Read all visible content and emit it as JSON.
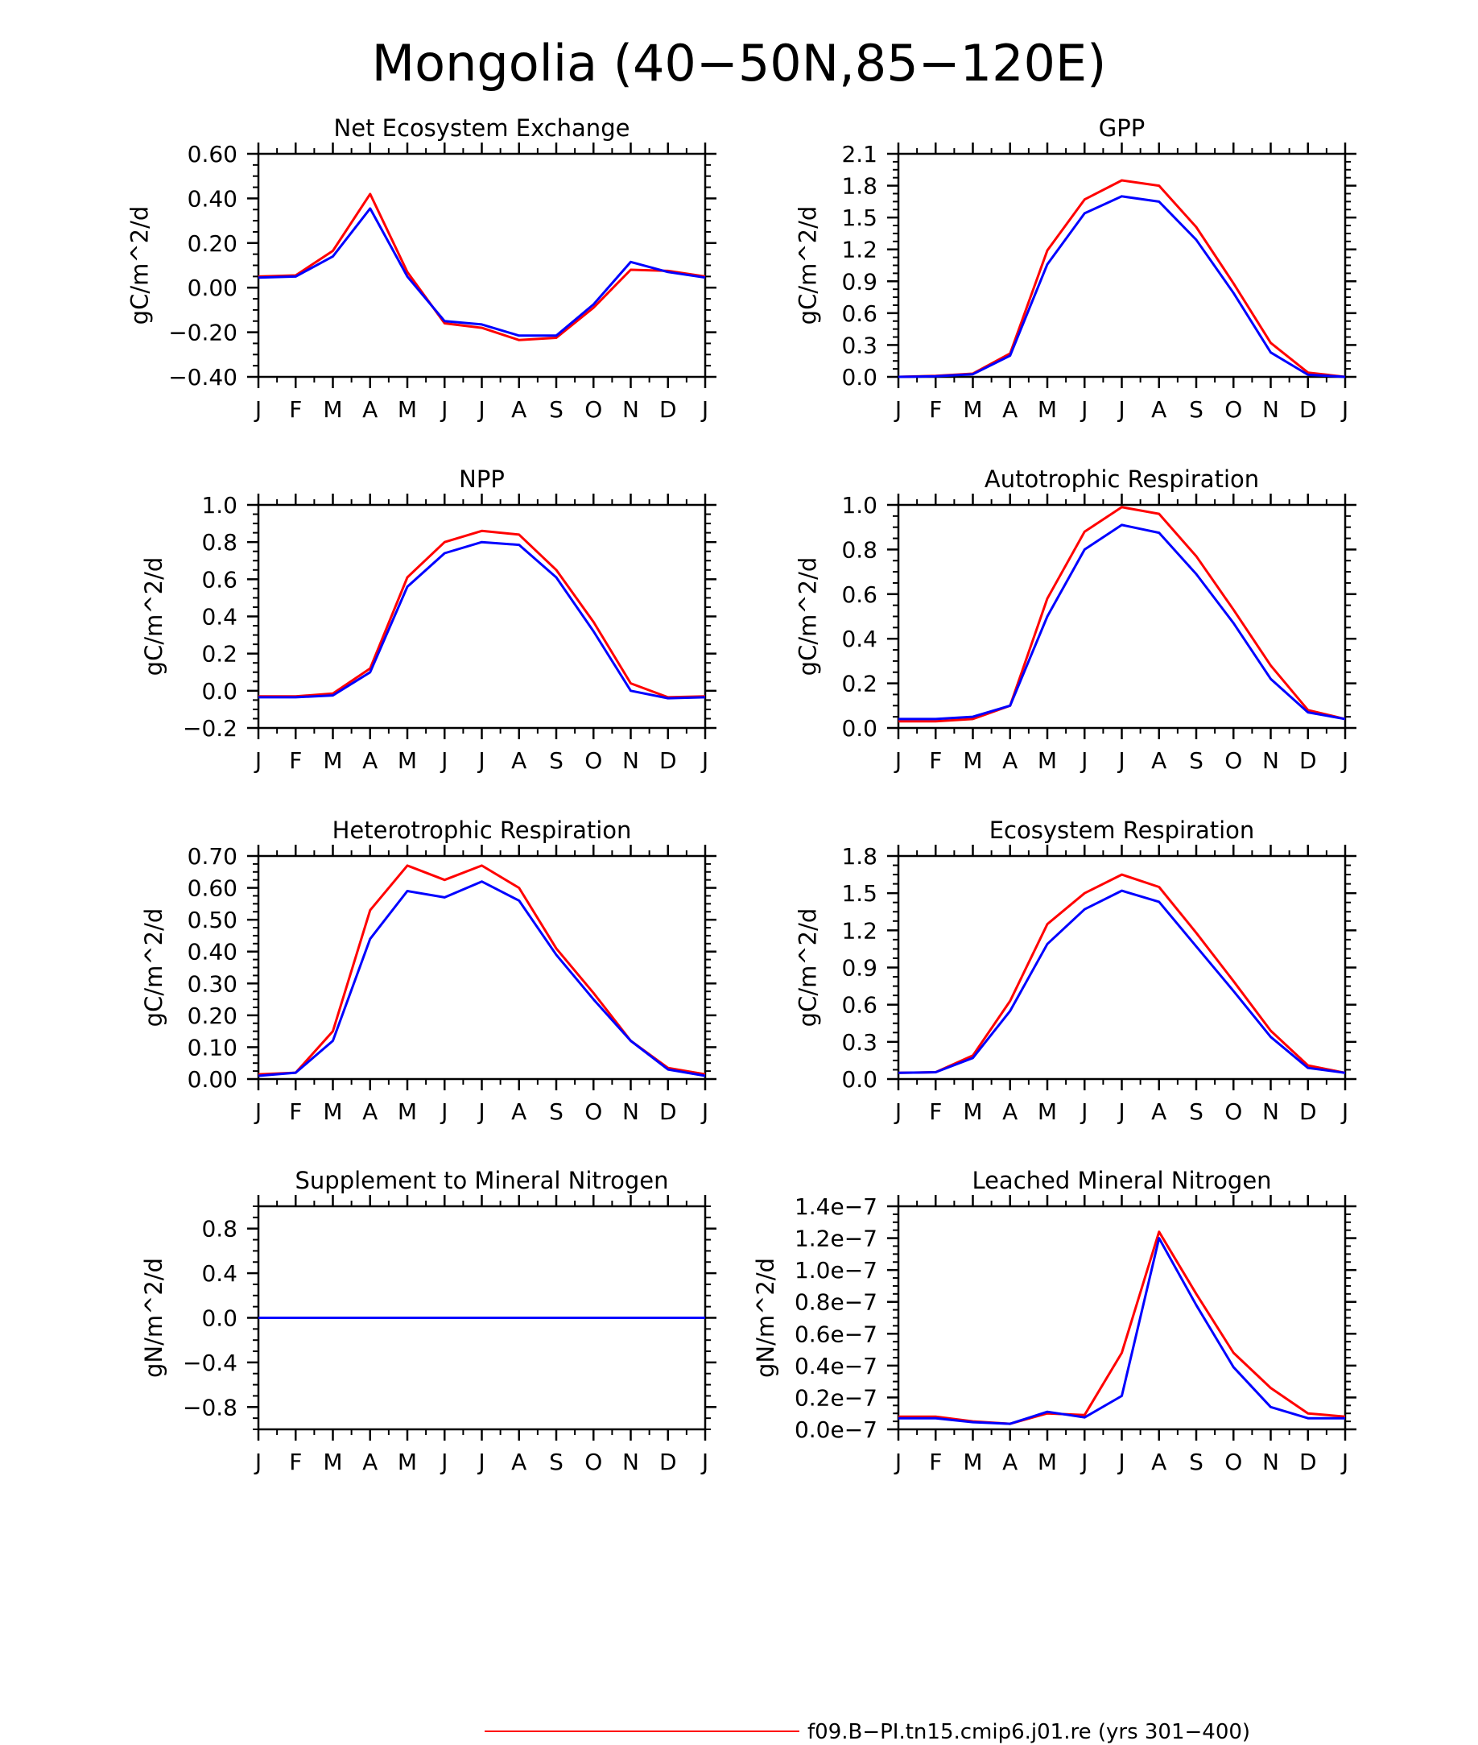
{
  "title": "Mongolia (40−50N,85−120E)",
  "colors": {
    "series_a": "#ff0000",
    "series_b": "#0000ff",
    "axis": "#000000"
  },
  "months": [
    "J",
    "F",
    "M",
    "A",
    "M",
    "J",
    "J",
    "A",
    "S",
    "O",
    "N",
    "D",
    "J"
  ],
  "legend": {
    "entries": [
      {
        "label": "f09.B−PI.tn15.cmip6.j01.re (yrs 301−400)",
        "color": "#ff0000"
      }
    ]
  },
  "chart_data": [
    {
      "type": "line",
      "title": "Net Ecosystem Exchange",
      "ylabel": "gC/m^2/d",
      "ylim": [
        -0.4,
        0.6
      ],
      "yticks": [
        "0.60",
        "0.40",
        "0.20",
        "0.00",
        "−0.20",
        "−0.40"
      ],
      "x": [
        "J",
        "F",
        "M",
        "A",
        "M",
        "J",
        "J",
        "A",
        "S",
        "O",
        "N",
        "D",
        "J"
      ],
      "series": [
        {
          "color": "#ff0000",
          "values": [
            0.05,
            0.055,
            0.165,
            0.42,
            0.07,
            -0.16,
            -0.18,
            -0.235,
            -0.225,
            -0.09,
            0.08,
            0.075,
            0.05
          ]
        },
        {
          "color": "#0000ff",
          "values": [
            0.045,
            0.05,
            0.14,
            0.355,
            0.05,
            -0.15,
            -0.165,
            -0.215,
            -0.215,
            -0.075,
            0.115,
            0.07,
            0.045
          ]
        }
      ]
    },
    {
      "type": "line",
      "title": "GPP",
      "ylabel": "gC/m^2/d",
      "ylim": [
        0.0,
        2.1
      ],
      "yticks": [
        "2.1",
        "1.8",
        "1.5",
        "1.2",
        "0.9",
        "0.6",
        "0.3",
        "0.0"
      ],
      "x": [
        "J",
        "F",
        "M",
        "A",
        "M",
        "J",
        "J",
        "A",
        "S",
        "O",
        "N",
        "D",
        "J"
      ],
      "series": [
        {
          "color": "#ff0000",
          "values": [
            0.0,
            0.01,
            0.03,
            0.22,
            1.19,
            1.67,
            1.85,
            1.8,
            1.41,
            0.88,
            0.32,
            0.04,
            0.0
          ]
        },
        {
          "color": "#0000ff",
          "values": [
            0.0,
            0.005,
            0.025,
            0.2,
            1.06,
            1.54,
            1.7,
            1.65,
            1.29,
            0.79,
            0.23,
            0.02,
            0.0
          ]
        }
      ]
    },
    {
      "type": "line",
      "title": "NPP",
      "ylabel": "gC/m^2/d",
      "ylim": [
        -0.2,
        1.0
      ],
      "yticks": [
        "1.0",
        "0.8",
        "0.6",
        "0.4",
        "0.2",
        "0.0",
        "−0.2"
      ],
      "x": [
        "J",
        "F",
        "M",
        "A",
        "M",
        "J",
        "J",
        "A",
        "S",
        "O",
        "N",
        "D",
        "J"
      ],
      "series": [
        {
          "color": "#ff0000",
          "values": [
            -0.03,
            -0.03,
            -0.015,
            0.12,
            0.61,
            0.8,
            0.86,
            0.84,
            0.65,
            0.37,
            0.04,
            -0.035,
            -0.03
          ]
        },
        {
          "color": "#0000ff",
          "values": [
            -0.035,
            -0.035,
            -0.025,
            0.1,
            0.56,
            0.74,
            0.8,
            0.785,
            0.61,
            0.32,
            0.0,
            -0.04,
            -0.035
          ]
        }
      ]
    },
    {
      "type": "line",
      "title": "Autotrophic Respiration",
      "ylabel": "gC/m^2/d",
      "ylim": [
        0.0,
        1.0
      ],
      "yticks": [
        "1.0",
        "0.8",
        "0.6",
        "0.4",
        "0.2",
        "0.0"
      ],
      "x": [
        "J",
        "F",
        "M",
        "A",
        "M",
        "J",
        "J",
        "A",
        "S",
        "O",
        "N",
        "D",
        "J"
      ],
      "series": [
        {
          "color": "#ff0000",
          "values": [
            0.03,
            0.03,
            0.04,
            0.1,
            0.58,
            0.88,
            0.99,
            0.96,
            0.77,
            0.53,
            0.28,
            0.08,
            0.04
          ]
        },
        {
          "color": "#0000ff",
          "values": [
            0.04,
            0.04,
            0.05,
            0.1,
            0.5,
            0.8,
            0.91,
            0.875,
            0.69,
            0.47,
            0.22,
            0.07,
            0.04
          ]
        }
      ]
    },
    {
      "type": "line",
      "title": "Heterotrophic Respiration",
      "ylabel": "gC/m^2/d",
      "ylim": [
        0.0,
        0.7
      ],
      "yticks": [
        "0.70",
        "0.60",
        "0.50",
        "0.40",
        "0.30",
        "0.20",
        "0.10",
        "0.00"
      ],
      "x": [
        "J",
        "F",
        "M",
        "A",
        "M",
        "J",
        "J",
        "A",
        "S",
        "O",
        "N",
        "D",
        "J"
      ],
      "series": [
        {
          "color": "#ff0000",
          "values": [
            0.015,
            0.02,
            0.15,
            0.53,
            0.67,
            0.625,
            0.67,
            0.6,
            0.41,
            0.27,
            0.12,
            0.035,
            0.015
          ]
        },
        {
          "color": "#0000ff",
          "values": [
            0.01,
            0.02,
            0.12,
            0.44,
            0.59,
            0.57,
            0.62,
            0.56,
            0.39,
            0.25,
            0.12,
            0.03,
            0.01
          ]
        }
      ]
    },
    {
      "type": "line",
      "title": "Ecosystem Respiration",
      "ylabel": "gC/m^2/d",
      "ylim": [
        0.0,
        1.8
      ],
      "yticks": [
        "1.8",
        "1.5",
        "1.2",
        "0.9",
        "0.6",
        "0.3",
        "0.0"
      ],
      "x": [
        "J",
        "F",
        "M",
        "A",
        "M",
        "J",
        "J",
        "A",
        "S",
        "O",
        "N",
        "D",
        "J"
      ],
      "series": [
        {
          "color": "#ff0000",
          "values": [
            0.05,
            0.055,
            0.19,
            0.63,
            1.25,
            1.5,
            1.65,
            1.55,
            1.18,
            0.79,
            0.39,
            0.11,
            0.05
          ]
        },
        {
          "color": "#0000ff",
          "values": [
            0.05,
            0.055,
            0.17,
            0.55,
            1.09,
            1.37,
            1.52,
            1.43,
            1.07,
            0.71,
            0.34,
            0.09,
            0.05
          ]
        }
      ]
    },
    {
      "type": "line",
      "title": "Supplement to Mineral Nitrogen",
      "ylabel": "gN/m^2/d",
      "ylim": [
        -1.0,
        1.0
      ],
      "yticks": [
        "0.8",
        "0.4",
        "0.0",
        "−0.4",
        "−0.8"
      ],
      "x": [
        "J",
        "F",
        "M",
        "A",
        "M",
        "J",
        "J",
        "A",
        "S",
        "O",
        "N",
        "D",
        "J"
      ],
      "series": [
        {
          "color": "#ff0000",
          "values": [
            0,
            0,
            0,
            0,
            0,
            0,
            0,
            0,
            0,
            0,
            0,
            0,
            0
          ]
        },
        {
          "color": "#0000ff",
          "values": [
            0,
            0,
            0,
            0,
            0,
            0,
            0,
            0,
            0,
            0,
            0,
            0,
            0
          ]
        }
      ]
    },
    {
      "type": "line",
      "title": "Leached Mineral Nitrogen",
      "ylabel": "gN/m^2/d",
      "ylim": [
        0.0,
        1.4e-07
      ],
      "yticks": [
        "1.4e−7",
        "1.2e−7",
        "1.0e−7",
        "0.8e−7",
        "0.6e−7",
        "0.4e−7",
        "0.2e−7",
        "0.0e−7"
      ],
      "x": [
        "J",
        "F",
        "M",
        "A",
        "M",
        "J",
        "J",
        "A",
        "S",
        "O",
        "N",
        "D",
        "J"
      ],
      "series": [
        {
          "color": "#ff0000",
          "values": [
            8e-09,
            8e-09,
            5e-09,
            3.5e-09,
            1e-08,
            9e-09,
            4.8e-08,
            1.24e-07,
            8.5e-08,
            4.8e-08,
            2.6e-08,
            1e-08,
            8e-09
          ]
        },
        {
          "color": "#0000ff",
          "values": [
            7e-09,
            7e-09,
            4.5e-09,
            3.5e-09,
            1.1e-08,
            7.5e-09,
            2.1e-08,
            1.2e-07,
            7.8e-08,
            3.9e-08,
            1.4e-08,
            7e-09,
            7e-09
          ]
        }
      ]
    }
  ]
}
